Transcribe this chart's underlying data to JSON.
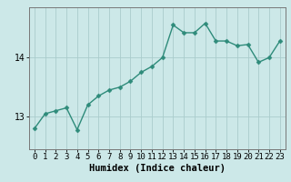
{
  "xlabel": "Humidex (Indice chaleur)",
  "x_values": [
    0,
    1,
    2,
    3,
    4,
    5,
    6,
    7,
    8,
    9,
    10,
    11,
    12,
    13,
    14,
    15,
    16,
    17,
    18,
    19,
    20,
    21,
    22,
    23
  ],
  "y_values": [
    12.8,
    13.05,
    13.1,
    13.15,
    12.78,
    13.2,
    13.35,
    13.45,
    13.5,
    13.6,
    13.75,
    13.85,
    14.0,
    14.55,
    14.42,
    14.42,
    14.58,
    14.28,
    14.28,
    14.2,
    14.22,
    13.92,
    14.0,
    14.28
  ],
  "line_color": "#2e8b7a",
  "marker_color": "#2e8b7a",
  "bg_color": "#cce8e8",
  "grid_color": "#aacccc",
  "yticks": [
    13,
    14
  ],
  "ylim": [
    12.45,
    14.85
  ],
  "xlim": [
    -0.5,
    23.5
  ],
  "marker_size": 2.5,
  "line_width": 1.0,
  "xlabel_fontsize": 7.5,
  "tick_fontsize": 6.5
}
